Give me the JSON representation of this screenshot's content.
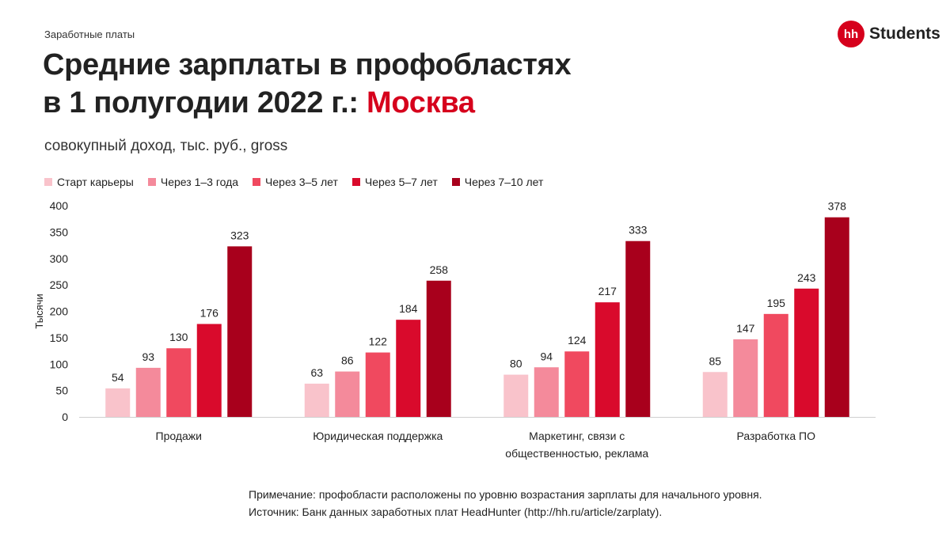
{
  "header": {
    "section": "Заработные платы",
    "title_line1": "Средние зарплаты в профобластях",
    "title_line2_prefix": "в 1 полугодии 2022 г.: ",
    "title_city": "Москва",
    "subtitle": "совокупный доход, тыс. руб., gross"
  },
  "logo": {
    "mark": "hh",
    "text": "Students"
  },
  "colors": {
    "brand_red": "#d6001c",
    "series": [
      "#f9c3cb",
      "#f48a9b",
      "#f0495f",
      "#d90a2c",
      "#a8001c"
    ]
  },
  "chart_data": {
    "type": "bar",
    "title": "Средние зарплаты в профобластях в 1 полугодии 2022 г.: Москва",
    "subtitle": "совокупный доход, тыс. руб., gross",
    "xlabel": "",
    "ylabel": "Тысячи",
    "ylim": [
      0,
      400
    ],
    "yticks": [
      0,
      50,
      100,
      150,
      200,
      250,
      300,
      350,
      400
    ],
    "grid": false,
    "legend_position": "top-left",
    "categories": [
      [
        "Продажи"
      ],
      [
        "Юридическая поддержка"
      ],
      [
        "Маркетинг, связи с",
        "общественностью, реклама"
      ],
      [
        "Разработка ПО"
      ]
    ],
    "series": [
      {
        "name": "Старт карьеры",
        "values": [
          54,
          63,
          80,
          85
        ]
      },
      {
        "name": "Через 1–3 года",
        "values": [
          93,
          86,
          94,
          147
        ]
      },
      {
        "name": "Через 3–5 лет",
        "values": [
          130,
          122,
          124,
          195
        ]
      },
      {
        "name": "Через 5–7 лет",
        "values": [
          176,
          184,
          217,
          243
        ]
      },
      {
        "name": "Через 7–10 лет",
        "values": [
          323,
          258,
          333,
          378
        ]
      }
    ]
  },
  "notes": {
    "note": "Примечание: профобласти расположены по уровню возрастания зарплаты для начального уровня.",
    "source": "Источник: Банк данных заработных плат HeadHunter (http://hh.ru/article/zarplaty)."
  }
}
